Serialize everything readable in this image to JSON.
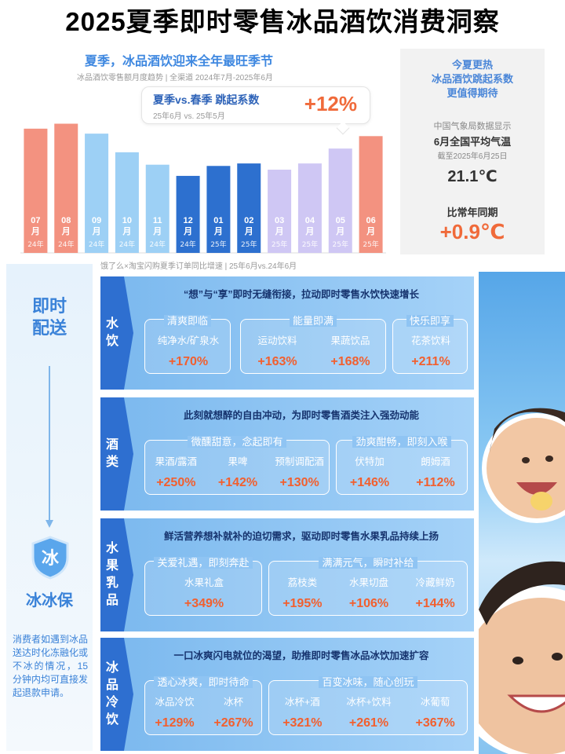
{
  "title": "2025夏季即时零售冰品酒饮消费洞察",
  "chart_header": {
    "heading": "夏季，冰品酒饮迎来全年最旺季节",
    "subtitle": "冰品酒饮零售额月度趋势 | 全渠道 2024年7月-2025年6月"
  },
  "callout": {
    "title": "夏季vs.春季 跳起系数",
    "sub": "25年6月 vs. 25年5月",
    "value": "+12%"
  },
  "chart_data": {
    "type": "bar",
    "title": "冰品酒饮零售额月度趋势",
    "categories": [
      "07月",
      "08月",
      "09月",
      "10月",
      "11月",
      "12月",
      "01月",
      "02月",
      "03月",
      "04月",
      "05月",
      "06月"
    ],
    "month_labels": [
      "07",
      "08",
      "09",
      "10",
      "11",
      "12",
      "01",
      "02",
      "03",
      "04",
      "05",
      "06"
    ],
    "unit_label": "月",
    "years": [
      "24年",
      "24年",
      "24年",
      "24年",
      "24年",
      "24年",
      "25年",
      "25年",
      "25年",
      "25年",
      "25年",
      "25年"
    ],
    "values": [
      100,
      104,
      96,
      81,
      71,
      62,
      70,
      72,
      67,
      72,
      84,
      94
    ],
    "colors": [
      "#f39280",
      "#f39280",
      "#9dd0f5",
      "#9dd0f5",
      "#9dd0f5",
      "#2d70cf",
      "#2d70cf",
      "#2d70cf",
      "#cfc7f4",
      "#cfc7f4",
      "#cfc7f4",
      "#f39280"
    ],
    "ylim": [
      0,
      110
    ],
    "xlabel": "",
    "ylabel": "",
    "grid": false
  },
  "temperature": {
    "headline": [
      "今夏更热",
      "冰品酒饮跳起系数",
      "更值得期待"
    ],
    "source": "中国气象局数据显示",
    "label": "6月全国平均气温",
    "date": "截至2025年6月25日",
    "value": "21.1℃",
    "compare_label": "比常年同期",
    "delta": "+0.9℃"
  },
  "source_note": "饿了么×淘宝闪购夏季订单同比增速 | 25年6月vs.24年6月",
  "left": {
    "delivery": [
      "即时",
      "配送"
    ],
    "brand_icon_char": "冰",
    "brand": "冰冰保",
    "desc": "消费者如遇到冰品送达时化冻融化或不冰的情况，15分钟内均可直接发起退款申请。"
  },
  "sections": [
    {
      "label": [
        "水",
        "饮"
      ],
      "headline": "“想”与“享”即时无缝衔接，拉动即时零售水饮快速增长",
      "groups": [
        {
          "title": "清爽即临",
          "items": [
            {
              "name": "纯净水/矿泉水",
              "value": "+170%"
            }
          ]
        },
        {
          "title": "能量即满",
          "items": [
            {
              "name": "运动饮料",
              "value": "+163%"
            },
            {
              "name": "果蔬饮品",
              "value": "+168%"
            }
          ]
        },
        {
          "title": "快乐即享",
          "items": [
            {
              "name": "花茶饮料",
              "value": "+211%"
            }
          ]
        }
      ]
    },
    {
      "label": [
        "酒",
        "类"
      ],
      "headline": "此刻就想醉的自由冲动，为即时零售酒类注入强劲动能",
      "groups": [
        {
          "title": "微醺甜意，念起即有",
          "items": [
            {
              "name": "果酒/露酒",
              "value": "+250%"
            },
            {
              "name": "果啤",
              "value": "+142%"
            },
            {
              "name": "预制调配酒",
              "value": "+130%"
            }
          ]
        },
        {
          "title": "劲爽酣畅，即刻入喉",
          "items": [
            {
              "name": "伏特加",
              "value": "+146%"
            },
            {
              "name": "朗姆酒",
              "value": "+112%"
            }
          ]
        }
      ]
    },
    {
      "label": [
        "水",
        "果",
        "乳",
        "品"
      ],
      "headline": "鲜活营养想补就补的迫切需求，驱动即时零售水果乳品持续上扬",
      "groups": [
        {
          "title": "关爱礼遇，即刻奔赴",
          "items": [
            {
              "name": "水果礼盒",
              "value": "+349%"
            }
          ]
        },
        {
          "title": "满满元气，瞬时补给",
          "items": [
            {
              "name": "荔枝类",
              "value": "+195%"
            },
            {
              "name": "水果切盘",
              "value": "+106%"
            },
            {
              "name": "冷藏鲜奶",
              "value": "+144%"
            }
          ]
        }
      ]
    },
    {
      "label": [
        "冰",
        "品",
        "冷",
        "饮"
      ],
      "headline": "一口冰爽闪电就位的渴望，助推即时零售冰品冰饮加速扩容",
      "groups": [
        {
          "title": "透心冰爽，即时待命",
          "items": [
            {
              "name": "冰品冷饮",
              "value": "+129%"
            },
            {
              "name": "冰杯",
              "value": "+267%"
            }
          ]
        },
        {
          "title": "百变冰味，随心创玩",
          "items": [
            {
              "name": "冰杯+酒",
              "value": "+321%"
            },
            {
              "name": "冰杯+饮料",
              "value": "+261%"
            },
            {
              "name": "冰葡萄",
              "value": "+367%"
            }
          ]
        }
      ]
    }
  ]
}
